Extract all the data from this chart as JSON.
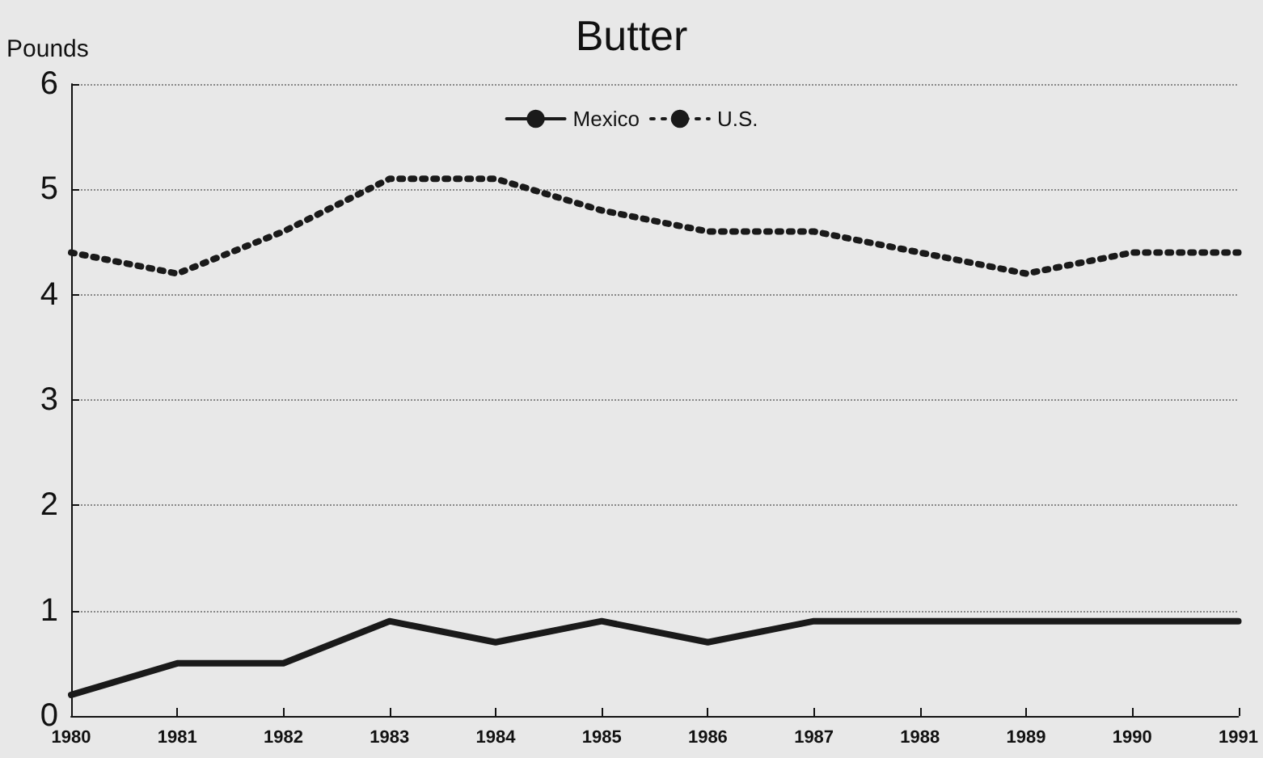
{
  "chart_data": {
    "type": "line",
    "title": "Butter",
    "ylabel": "Pounds",
    "categories": [
      "1980",
      "1981",
      "1982",
      "1983",
      "1984",
      "1985",
      "1986",
      "1987",
      "1988",
      "1989",
      "1990",
      "1991"
    ],
    "series": [
      {
        "name": "Mexico",
        "color": "#1a1a1a",
        "line_style": "solid",
        "values": [
          0.2,
          0.5,
          0.5,
          0.9,
          0.7,
          0.9,
          0.7,
          0.9,
          0.9,
          0.9,
          0.9,
          0.9
        ]
      },
      {
        "name": "U.S.",
        "color": "#1a1a1a",
        "line_style": "dotted",
        "values": [
          4.4,
          4.2,
          4.6,
          5.1,
          5.1,
          4.8,
          4.6,
          4.6,
          4.4,
          4.2,
          4.4,
          4.4
        ]
      }
    ],
    "ylim": [
      0,
      6
    ],
    "yticks": [
      0,
      1,
      2,
      3,
      4,
      5,
      6
    ],
    "grid": "y",
    "legend": "top",
    "marker": "none"
  }
}
